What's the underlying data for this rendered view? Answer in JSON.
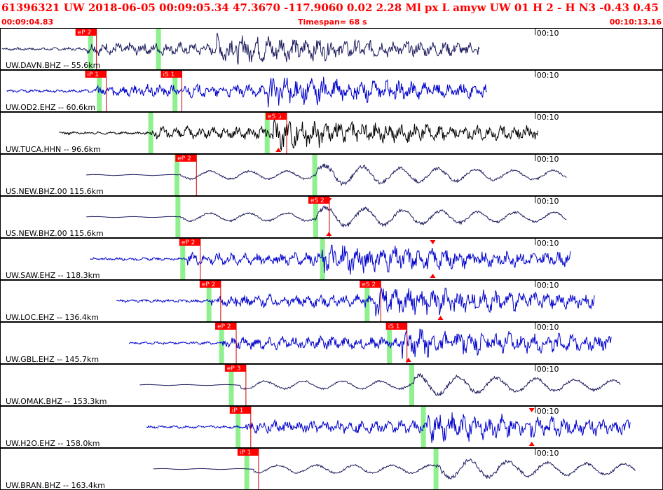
{
  "header": {
    "title": "61396321 UW 2018-06-05 00:09:05.34   47.3670 -117.9060   0.02  2.28 Ml  px  L amyw     UW 01  H   2  -  H N3    -0.43  0.45",
    "start_time": "00:09:04.83",
    "timespan": "Timespan=  68 s",
    "end_time": "00:10:13.16"
  },
  "colors": {
    "header_text": "#ff0000",
    "frame": "#000000",
    "trace_dark": "#1a1a5e",
    "trace_blue": "#0000cc",
    "trace_black": "#000000",
    "pick_label_bg": "#ff0000",
    "pick_line": "#cc0000",
    "phase_window": "#8ef08e"
  },
  "traces": [
    {
      "label": "UW.DAVN.BHZ -- 55.6km",
      "time_tick": "00:10",
      "color": "dark",
      "picks": [
        {
          "label": "eP 2",
          "time": 8.5
        }
      ],
      "windows": [
        {
          "time": 9.3
        },
        {
          "time": 16.3
        }
      ],
      "marks": [],
      "start": 0.2,
      "end": 49.4,
      "arrival_p": 9.0,
      "arrival_s": 22.3,
      "amp": 0.5
    },
    {
      "label": "UW.OD2.EHZ -- 60.6km",
      "time_tick": "00:10",
      "color": "blue",
      "picks": [
        {
          "label": "iP 1",
          "time": 9.5
        },
        {
          "label": "iS 1",
          "time": 17.3
        }
      ],
      "windows": [
        {
          "time": 10.2
        },
        {
          "time": 18.0
        }
      ],
      "marks": [],
      "start": 0.7,
      "end": 50.2,
      "arrival_p": 9.8,
      "arrival_s": 27.6,
      "amp": 0.4
    },
    {
      "label": "UW.TUCA.HHN -- 96.6km",
      "time_tick": "00:10",
      "color": "black",
      "picks": [
        {
          "label": "eS 3",
          "time": 28.1
        }
      ],
      "windows": [
        {
          "time": 15.5
        },
        {
          "time": 27.5
        }
      ],
      "marks": [
        {
          "time": 28.7,
          "pos": "top"
        },
        {
          "time": 28.7,
          "pos": "bottom"
        }
      ],
      "start": 6.1,
      "end": 55.5,
      "arrival_p": 15.5,
      "arrival_s": 28.0,
      "amp": 0.45
    },
    {
      "label": "US.NEW.BHZ.00 115.6km",
      "time_tick": "00:10",
      "color": "dark",
      "picks": [
        {
          "label": "eP 2",
          "time": 18.8
        }
      ],
      "windows": [
        {
          "time": 18.2
        },
        {
          "time": 32.4
        }
      ],
      "marks": [],
      "start": 8.9,
      "end": 58.4,
      "arrival_p": 18.5,
      "arrival_s": 32.5,
      "amp": 0.4
    },
    {
      "label": "US.NEW.BHZ.00 115.6km",
      "time_tick": "00:10",
      "color": "dark",
      "picks": [
        {
          "label": "eS 2",
          "time": 32.5
        }
      ],
      "windows": [
        {
          "time": 18.3
        },
        {
          "time": 32.5
        }
      ],
      "marks": [
        {
          "time": 33.9,
          "pos": "top"
        },
        {
          "time": 33.9,
          "pos": "bottom"
        }
      ],
      "start": 8.9,
      "end": 58.4,
      "arrival_p": 18.5,
      "arrival_s": 32.5,
      "amp": 0.4
    },
    {
      "label": "UW.SAW.EHZ -- 118.3km",
      "time_tick": "00:10",
      "color": "blue",
      "picks": [
        {
          "label": "eP 2",
          "time": 19.2
        }
      ],
      "windows": [
        {
          "time": 18.8
        },
        {
          "time": 33.2
        }
      ],
      "marks": [
        {
          "time": 44.6,
          "pos": "top"
        },
        {
          "time": 44.6,
          "pos": "bottom"
        }
      ],
      "start": 9.3,
      "end": 58.8,
      "arrival_p": 19.2,
      "arrival_s": 33.2,
      "amp": 0.4
    },
    {
      "label": "UW.LOC.EHZ -- 136.4km",
      "time_tick": "00:10",
      "color": "blue",
      "picks": [
        {
          "label": "eP 2",
          "time": 21.3
        },
        {
          "label": "eS 2",
          "time": 37.8
        }
      ],
      "windows": [
        {
          "time": 21.5
        },
        {
          "time": 37.8
        }
      ],
      "marks": [
        {
          "time": 45.4,
          "pos": "bottom"
        }
      ],
      "start": 12.0,
      "end": 61.3,
      "arrival_p": 21.7,
      "arrival_s": 38.7,
      "amp": 0.4
    },
    {
      "label": "UW.GBL.EHZ -- 145.7km",
      "time_tick": "00:10",
      "color": "blue",
      "picks": [
        {
          "label": "eP 2",
          "time": 22.9
        },
        {
          "label": "iS 1",
          "time": 40.5
        }
      ],
      "windows": [
        {
          "time": 22.8
        },
        {
          "time": 40.1
        }
      ],
      "marks": [
        {
          "time": 42.1,
          "pos": "bottom"
        }
      ],
      "start": 13.3,
      "end": 63.0,
      "arrival_p": 22.9,
      "arrival_s": 41.2,
      "amp": 0.4
    },
    {
      "label": "UW.OMAK.BHZ -- 153.3km",
      "time_tick": "00:10",
      "color": "dark",
      "picks": [
        {
          "label": "eP 3",
          "time": 23.9
        }
      ],
      "windows": [
        {
          "time": 23.8
        },
        {
          "time": 42.4
        }
      ],
      "marks": [],
      "start": 14.4,
      "end": 64.0,
      "arrival_p": 24.8,
      "arrival_s": 42.7,
      "amp": 0.4
    },
    {
      "label": "UW.H2O.EHZ -- 158.0km",
      "time_tick": "00:10",
      "color": "blue",
      "picks": [
        {
          "label": "iP 1",
          "time": 24.4
        }
      ],
      "windows": [
        {
          "time": 24.5
        },
        {
          "time": 43.6
        }
      ],
      "marks": [
        {
          "time": 54.8,
          "pos": "top"
        },
        {
          "time": 54.8,
          "pos": "bottom"
        }
      ],
      "start": 15.1,
      "end": 65.0,
      "arrival_p": 25.3,
      "arrival_s": 44.0,
      "amp": 0.4
    },
    {
      "label": "UW.BRAN.BHZ -- 163.4km",
      "time_tick": "00:10",
      "color": "dark",
      "picks": [
        {
          "label": "iP 1",
          "time": 25.2
        }
      ],
      "windows": [
        {
          "time": 25.4
        },
        {
          "time": 44.9
        }
      ],
      "marks": [],
      "start": 15.8,
      "end": 65.5,
      "arrival_p": 26.2,
      "arrival_s": 45.0,
      "amp": 0.45
    }
  ]
}
